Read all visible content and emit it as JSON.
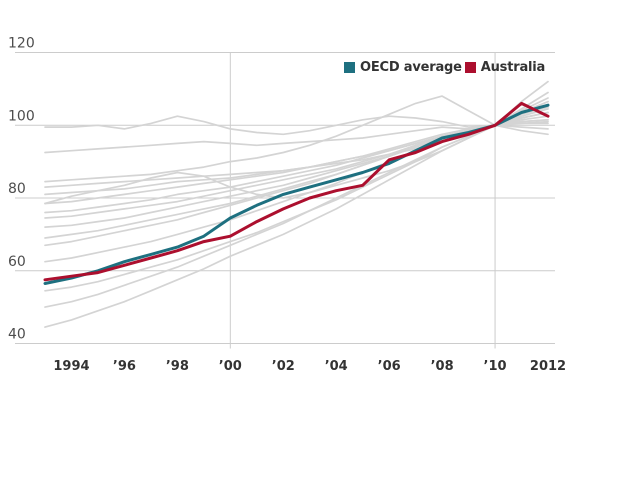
{
  "legend": {
    "items": [
      {
        "label": "OECD average",
        "color": "#1e7080"
      },
      {
        "label": "Australia",
        "color": "#ac0f2e"
      }
    ]
  },
  "chart_data": {
    "type": "line",
    "title": "",
    "xlabel": "",
    "ylabel": "",
    "x_years": [
      1993,
      1994,
      1995,
      1996,
      1997,
      1998,
      1999,
      2000,
      2001,
      2002,
      2003,
      2004,
      2005,
      2006,
      2007,
      2008,
      2009,
      2010,
      2011,
      2012
    ],
    "ylim": [
      40,
      120
    ],
    "yticks": [
      40,
      60,
      80,
      100,
      120
    ],
    "ytick_labels": [
      "40",
      "60",
      "80",
      "100",
      "120"
    ],
    "xticks": [
      {
        "year": 1994,
        "label": "1994"
      },
      {
        "year": 1996,
        "label": "’96"
      },
      {
        "year": 1998,
        "label": "’98"
      },
      {
        "year": 2000,
        "label": "’00"
      },
      {
        "year": 2002,
        "label": "’02"
      },
      {
        "year": 2004,
        "label": "’04"
      },
      {
        "year": 2006,
        "label": "’06"
      },
      {
        "year": 2008,
        "label": "’08"
      },
      {
        "year": 2010,
        "label": "’10"
      },
      {
        "year": 2012,
        "label": "2012"
      }
    ],
    "x_gridline_years": [
      2000,
      2010
    ],
    "grid": "horizontal gridlines at each y tick, vertical gridlines at 2000 and 2010",
    "legend_position": "top-right inside plot",
    "colors": {
      "oecd_teal": "#1e7080",
      "australia_red": "#ac0f2e",
      "background_line": "#d4d4d4",
      "gridline": "#cccccc",
      "x_tick_text": "#333333",
      "y_tick_text": "#4d4d4d"
    },
    "series": [
      {
        "name": "OECD average",
        "role": "highlight",
        "color": "#1e7080",
        "values": [
          56.5,
          58,
          60,
          62.5,
          64.5,
          66.5,
          69.5,
          74.5,
          78,
          81,
          83,
          85,
          87,
          89.5,
          93,
          96.5,
          98,
          100,
          103.5,
          105.5
        ]
      },
      {
        "name": "Australia",
        "role": "highlight",
        "color": "#ac0f2e",
        "values": [
          57.5,
          58.5,
          59.5,
          61.5,
          63.5,
          65.5,
          68,
          69.5,
          73.5,
          77,
          80,
          82,
          83.5,
          90.5,
          92.5,
          95.5,
          97.5,
          100,
          106,
          102.5
        ]
      },
      {
        "name": "background-1",
        "role": "background",
        "color": "#d4d4d4",
        "values": [
          99.5,
          99.5,
          100,
          99,
          100.5,
          102.5,
          101,
          99,
          98,
          97.5,
          98.5,
          100,
          101.5,
          102.5,
          102,
          101,
          99.5,
          100,
          99.5,
          99
        ]
      },
      {
        "name": "background-2",
        "role": "background",
        "color": "#d4d4d4",
        "values": [
          92.5,
          93,
          93.5,
          94,
          94.5,
          95,
          95.5,
          95,
          94.5,
          95,
          95.5,
          96,
          96.5,
          97.5,
          98.5,
          99.5,
          99,
          100,
          100.5,
          101
        ]
      },
      {
        "name": "background-3",
        "role": "background",
        "color": "#d4d4d4",
        "values": [
          84.5,
          85,
          85.5,
          86,
          86.5,
          87.5,
          88.5,
          90,
          91,
          92.5,
          94.5,
          97,
          100,
          103,
          106,
          108,
          104,
          100,
          98.5,
          97.5
        ]
      },
      {
        "name": "background-4",
        "role": "background",
        "color": "#d4d4d4",
        "values": [
          78.5,
          80.5,
          82,
          83.5,
          85.5,
          87,
          86,
          83,
          81,
          80,
          81.5,
          83.5,
          85.5,
          87.5,
          90,
          93,
          96.5,
          100,
          101,
          101.5
        ]
      },
      {
        "name": "background-5",
        "role": "background",
        "color": "#d4d4d4",
        "values": [
          83,
          83.5,
          84,
          84.5,
          85,
          85.5,
          86,
          86.5,
          87,
          87.5,
          88.5,
          89.5,
          90.5,
          92,
          93.5,
          95.5,
          97.5,
          100,
          101,
          101.5
        ]
      },
      {
        "name": "background-6",
        "role": "background",
        "color": "#d4d4d4",
        "values": [
          81,
          81.5,
          82,
          82.5,
          83.5,
          84.5,
          85,
          85.5,
          86.5,
          87.5,
          88.5,
          90,
          91.5,
          93,
          95,
          97,
          98.5,
          100,
          102,
          103.5
        ]
      },
      {
        "name": "background-7",
        "role": "background",
        "color": "#d4d4d4",
        "values": [
          78.5,
          79,
          80,
          81,
          82,
          83,
          84,
          85,
          86,
          87,
          88.5,
          90,
          91.5,
          93.5,
          95.5,
          97.5,
          99,
          100,
          100.5,
          100.5
        ]
      },
      {
        "name": "background-8",
        "role": "background",
        "color": "#d4d4d4",
        "values": [
          76,
          76.5,
          77.5,
          78.5,
          79.5,
          81,
          82,
          83,
          84.5,
          86,
          87.5,
          89,
          91,
          93,
          95,
          97,
          98.5,
          100,
          101.5,
          102.5
        ]
      },
      {
        "name": "background-9",
        "role": "background",
        "color": "#d4d4d4",
        "values": [
          74.5,
          75,
          76,
          77,
          78,
          79,
          80.5,
          82,
          83.5,
          85,
          86.5,
          88,
          90,
          92,
          94.5,
          97,
          98.5,
          100,
          102.5,
          104.5
        ]
      },
      {
        "name": "background-10",
        "role": "background",
        "color": "#d4d4d4",
        "values": [
          72,
          72.5,
          73.5,
          74.5,
          76,
          77.5,
          79,
          80.5,
          82,
          83.5,
          85.5,
          87.5,
          89.5,
          91.5,
          94,
          96.5,
          98,
          100,
          103,
          105
        ]
      },
      {
        "name": "background-11",
        "role": "background",
        "color": "#d4d4d4",
        "values": [
          69,
          70,
          71,
          72.5,
          74,
          75.5,
          77,
          78.5,
          80.5,
          82.5,
          84.5,
          86.5,
          89,
          91.5,
          94,
          96.5,
          98.5,
          100,
          103.5,
          106.5
        ]
      },
      {
        "name": "background-12",
        "role": "background",
        "color": "#d4d4d4",
        "values": [
          67,
          68,
          69.5,
          71,
          72.5,
          74,
          76,
          78,
          80,
          82,
          84,
          86.5,
          89,
          91.5,
          94,
          96.5,
          98.5,
          100,
          104,
          107.5
        ]
      },
      {
        "name": "background-13",
        "role": "background",
        "color": "#d4d4d4",
        "values": [
          62.5,
          63.5,
          65,
          66.5,
          68,
          70,
          72,
          74,
          76.5,
          79,
          81.5,
          84,
          87,
          90,
          93,
          96,
          98,
          100,
          102,
          103.5
        ]
      },
      {
        "name": "background-14",
        "role": "background",
        "color": "#d4d4d4",
        "values": [
          54.5,
          55.5,
          57,
          59,
          61,
          63,
          65.5,
          68,
          70.5,
          73.5,
          76.5,
          79.5,
          83,
          86.5,
          90,
          94,
          97,
          100,
          103.5,
          106.5
        ]
      },
      {
        "name": "background-15",
        "role": "background",
        "color": "#d4d4d4",
        "values": [
          50,
          51.5,
          53.5,
          56,
          58.5,
          61,
          64,
          67,
          70,
          73,
          76.5,
          80,
          83.5,
          87,
          90.5,
          94,
          97,
          100,
          104.5,
          109
        ]
      },
      {
        "name": "background-16",
        "role": "background",
        "color": "#d4d4d4",
        "values": [
          44.5,
          46.5,
          49,
          51.5,
          54.5,
          57.5,
          60.5,
          64,
          67,
          70,
          73.5,
          77,
          81,
          85,
          89,
          93,
          96.5,
          100,
          106.5,
          112
        ]
      }
    ]
  }
}
